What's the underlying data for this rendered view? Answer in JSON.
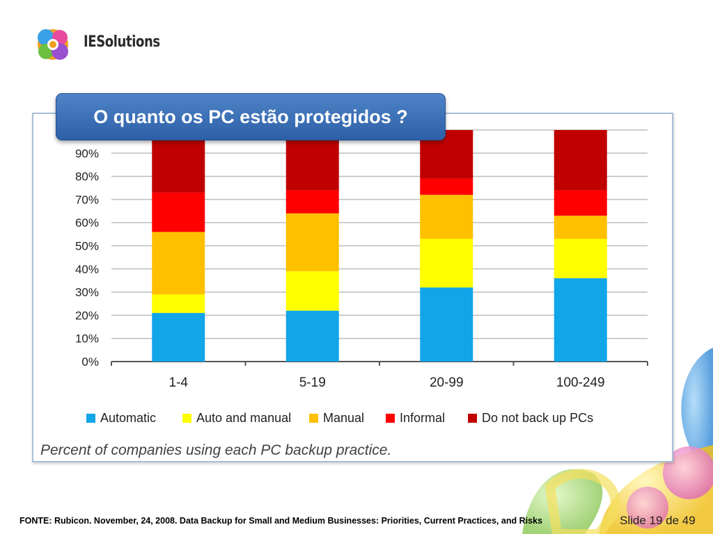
{
  "logo": {
    "text": "IESolutions"
  },
  "title": "O quanto os PC estão protegidos ?",
  "caption": "Percent of companies using each PC backup practice.",
  "footer": {
    "source": "FONTE: Rubicon. November, 24, 2008. Data Backup for Small and Medium Businesses: Priorities, Current Practices, and Risks",
    "slide": "Slide 19 de 49"
  },
  "chart_data": {
    "type": "bar",
    "stacked": true,
    "categories": [
      "1-4",
      "5-19",
      "20-99",
      "100-249"
    ],
    "ylim": [
      0,
      100
    ],
    "y_ticks": [
      "0%",
      "10%",
      "20%",
      "30%",
      "40%",
      "50%",
      "60%",
      "70%",
      "80%",
      "90%"
    ],
    "grid": true,
    "legend_position": "bottom",
    "series": [
      {
        "name": "Automatic",
        "color": "#12a5e8",
        "values": [
          21,
          22,
          32,
          36
        ]
      },
      {
        "name": "Auto and manual",
        "color": "#ffff00",
        "values": [
          8,
          17,
          21,
          17
        ]
      },
      {
        "name": "Manual",
        "color": "#ffc000",
        "values": [
          27,
          25,
          19,
          10
        ]
      },
      {
        "name": "Informal",
        "color": "#ff0000",
        "values": [
          17,
          10,
          7,
          11
        ]
      },
      {
        "name": "Do not back up PCs",
        "color": "#c00000",
        "values": [
          27,
          26,
          21,
          26
        ]
      }
    ]
  }
}
